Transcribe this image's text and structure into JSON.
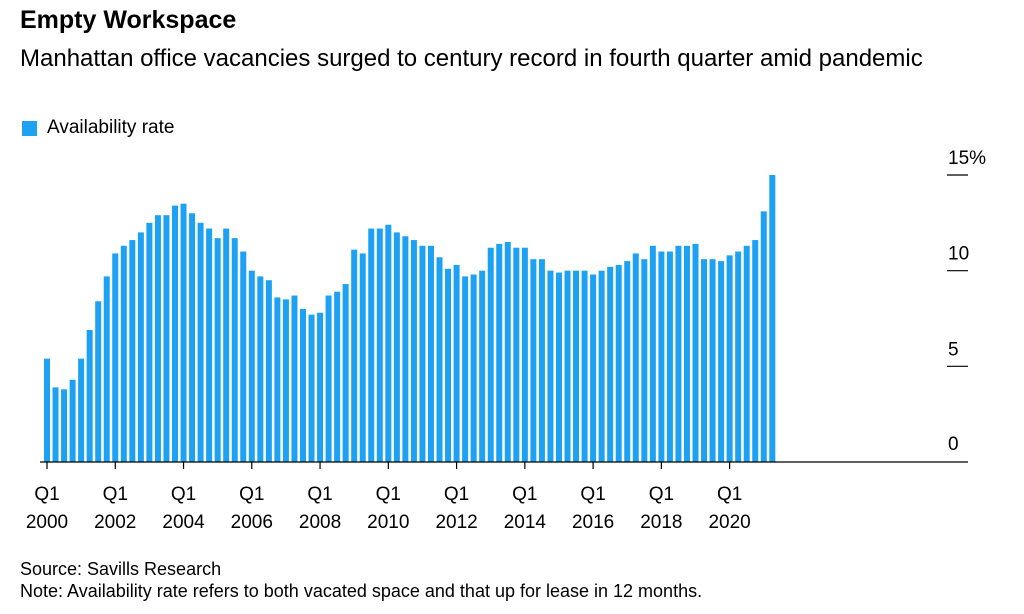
{
  "header": {
    "title": "Empty Workspace",
    "subtitle": "Manhattan office vacancies surged to century record in fourth quarter amid pandemic"
  },
  "footer": {
    "source": "Source: Savills Research",
    "note": "Note: Availability rate refers to both vacated space and that up for lease in 12 months."
  },
  "colors": {
    "bar": "#1da1f2",
    "axis": "#000000"
  },
  "chart_data": {
    "type": "bar",
    "title": "Empty Workspace",
    "legend": [
      "Availability rate"
    ],
    "legend_position": "top-left",
    "y_axis_side": "right",
    "ylim": [
      0,
      15
    ],
    "yticks": [
      {
        "value": 0,
        "label": "0"
      },
      {
        "value": 5,
        "label": "5"
      },
      {
        "value": 10,
        "label": "10"
      },
      {
        "value": 15,
        "label": "15%"
      }
    ],
    "xticks": [
      {
        "index": 0,
        "q": "Q1",
        "year": "2000"
      },
      {
        "index": 8,
        "q": "Q1",
        "year": "2002"
      },
      {
        "index": 16,
        "q": "Q1",
        "year": "2004"
      },
      {
        "index": 24,
        "q": "Q1",
        "year": "2006"
      },
      {
        "index": 32,
        "q": "Q1",
        "year": "2008"
      },
      {
        "index": 40,
        "q": "Q1",
        "year": "2010"
      },
      {
        "index": 48,
        "q": "Q1",
        "year": "2012"
      },
      {
        "index": 56,
        "q": "Q1",
        "year": "2014"
      },
      {
        "index": 64,
        "q": "Q1",
        "year": "2016"
      },
      {
        "index": 72,
        "q": "Q1",
        "year": "2018"
      },
      {
        "index": 80,
        "q": "Q1",
        "year": "2020"
      }
    ],
    "series": [
      {
        "name": "Availability rate",
        "start": "Q1 2000",
        "frequency": "quarterly",
        "values": [
          5.4,
          3.9,
          3.8,
          4.3,
          5.4,
          6.9,
          8.4,
          9.7,
          10.9,
          11.3,
          11.6,
          12.0,
          12.5,
          12.9,
          12.9,
          13.4,
          13.5,
          13.0,
          12.5,
          12.2,
          11.7,
          12.2,
          11.7,
          11.0,
          10.0,
          9.7,
          9.5,
          8.6,
          8.5,
          8.7,
          8.0,
          7.7,
          7.8,
          8.7,
          8.9,
          9.3,
          11.1,
          10.9,
          12.2,
          12.2,
          12.4,
          12.0,
          11.8,
          11.6,
          11.3,
          11.3,
          10.7,
          10.1,
          10.3,
          9.7,
          9.8,
          10.0,
          11.2,
          11.4,
          11.5,
          11.2,
          11.2,
          10.6,
          10.6,
          10.0,
          9.9,
          10.0,
          10.0,
          10.0,
          9.8,
          10.0,
          10.2,
          10.3,
          10.5,
          10.9,
          10.6,
          11.3,
          11.0,
          11.0,
          11.3,
          11.3,
          11.4,
          10.6,
          10.6,
          10.5,
          10.8,
          11.0,
          11.3,
          11.6,
          13.1,
          15.0
        ]
      }
    ]
  }
}
